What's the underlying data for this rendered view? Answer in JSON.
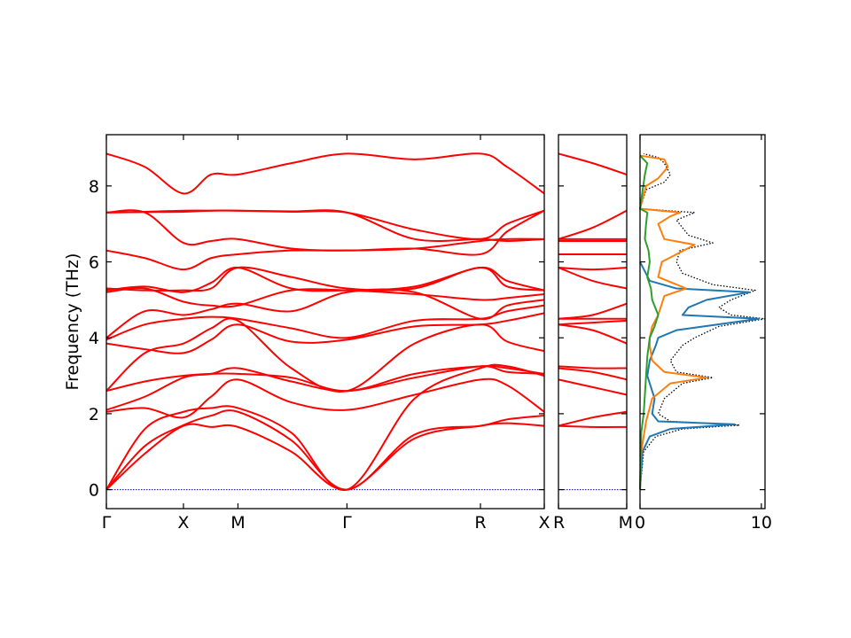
{
  "figure": {
    "ylabel": "Frequency (THz)"
  },
  "chart_data": [
    {
      "type": "line",
      "panel": "band-structure-main",
      "ylabel": "Frequency (THz)",
      "ylim": [
        -0.5,
        9.35
      ],
      "yticks": [
        0,
        2,
        4,
        6,
        8
      ],
      "path_labels": [
        "Γ",
        "X",
        "M",
        "Γ",
        "R",
        "X"
      ],
      "path_positions": [
        0,
        0.5,
        0.8536,
        1.5607,
        2.4267,
        2.8409
      ],
      "line_color": "#ff0000",
      "zero_line_color": "#0000aa",
      "series": [
        {
          "x": [
            0,
            0.25,
            0.5,
            0.68,
            0.8536,
            1.2,
            1.5607,
            2.0,
            2.4267,
            2.6,
            2.8409
          ],
          "values": [
            0,
            0.95,
            1.68,
            1.65,
            1.65,
            1.0,
            0,
            1.35,
            1.68,
            1.75,
            1.68
          ]
        },
        {
          "x": [
            0,
            0.25,
            0.5,
            0.68,
            0.8536,
            1.2,
            1.5607,
            2.0,
            2.4267,
            2.6,
            2.8409
          ],
          "values": [
            0,
            1.15,
            1.7,
            1.95,
            2.05,
            1.3,
            0,
            1.45,
            1.68,
            1.85,
            1.95
          ]
        },
        {
          "x": [
            0,
            0.25,
            0.5,
            0.68,
            0.8536,
            1.2,
            1.5607,
            2.0,
            2.4267,
            2.6,
            2.8409
          ],
          "values": [
            0,
            1.6,
            2.05,
            2.15,
            2.15,
            1.5,
            0,
            2.4,
            3.2,
            3.25,
            3.0
          ]
        },
        {
          "x": [
            0,
            0.25,
            0.5,
            0.68,
            0.8536,
            1.2,
            1.5607,
            2.0,
            2.4267,
            2.6,
            2.8409
          ],
          "values": [
            2.05,
            2.15,
            1.9,
            2.45,
            2.9,
            2.3,
            2.1,
            2.5,
            2.9,
            2.75,
            2.05
          ]
        },
        {
          "x": [
            0,
            0.25,
            0.5,
            0.68,
            0.8536,
            1.2,
            1.5607,
            2.0,
            2.4267,
            2.6,
            2.8409
          ],
          "values": [
            2.1,
            2.45,
            2.95,
            3.05,
            3.2,
            2.85,
            2.6,
            2.95,
            3.25,
            3.1,
            3.05
          ]
        },
        {
          "x": [
            0,
            0.25,
            0.5,
            0.68,
            0.8536,
            1.2,
            1.5607,
            2.0,
            2.4267,
            2.6,
            2.8409
          ],
          "values": [
            2.6,
            2.85,
            3.0,
            3.05,
            3.05,
            2.95,
            2.6,
            3.05,
            3.25,
            3.2,
            3.05
          ]
        },
        {
          "x": [
            0,
            0.25,
            0.5,
            0.68,
            0.8536,
            1.2,
            1.5607,
            2.0,
            2.4267,
            2.6,
            2.8409
          ],
          "values": [
            2.6,
            3.6,
            3.85,
            4.25,
            4.45,
            3.2,
            2.6,
            3.85,
            4.35,
            3.9,
            3.65
          ]
        },
        {
          "x": [
            0,
            0.25,
            0.5,
            0.68,
            0.8536,
            1.2,
            1.5607,
            2.0,
            2.4267,
            2.6,
            2.8409
          ],
          "values": [
            3.85,
            3.7,
            3.6,
            3.95,
            4.35,
            3.9,
            3.95,
            4.3,
            4.35,
            4.45,
            4.65
          ]
        },
        {
          "x": [
            0,
            0.25,
            0.5,
            0.68,
            0.8536,
            1.2,
            1.5607,
            2.0,
            2.4267,
            2.6,
            2.8409
          ],
          "values": [
            3.95,
            4.35,
            4.5,
            4.55,
            4.5,
            4.25,
            4.0,
            4.45,
            4.5,
            4.7,
            4.85
          ]
        },
        {
          "x": [
            0,
            0.25,
            0.5,
            0.68,
            0.8536,
            1.2,
            1.5607,
            2.0,
            2.4267,
            2.6,
            2.8409
          ],
          "values": [
            4.0,
            4.7,
            4.6,
            4.75,
            4.9,
            4.7,
            5.2,
            5.2,
            4.5,
            4.85,
            5.0
          ]
        },
        {
          "x": [
            0,
            0.25,
            0.5,
            0.68,
            0.8536,
            1.2,
            1.5607,
            2.0,
            2.4267,
            2.6,
            2.8409
          ],
          "values": [
            5.2,
            5.3,
            4.95,
            4.85,
            4.85,
            5.25,
            5.25,
            5.15,
            5.0,
            5.05,
            5.15
          ]
        },
        {
          "x": [
            0,
            0.25,
            0.5,
            0.68,
            0.8536,
            1.2,
            1.5607,
            2.0,
            2.4267,
            2.6,
            2.8409
          ],
          "values": [
            5.25,
            5.35,
            5.2,
            5.45,
            5.85,
            5.3,
            5.25,
            5.35,
            5.85,
            5.5,
            5.25
          ]
        },
        {
          "x": [
            0,
            0.25,
            0.5,
            0.68,
            0.8536,
            1.2,
            1.5607,
            2.0,
            2.4267,
            2.6,
            2.8409
          ],
          "values": [
            5.3,
            5.25,
            5.25,
            5.3,
            5.85,
            5.6,
            5.3,
            5.3,
            5.85,
            5.35,
            5.25
          ]
        },
        {
          "x": [
            0,
            0.25,
            0.5,
            0.68,
            0.8536,
            1.2,
            1.5607,
            2.0,
            2.4267,
            2.6,
            2.8409
          ],
          "values": [
            6.3,
            6.1,
            5.8,
            6.1,
            6.2,
            6.3,
            6.3,
            6.35,
            6.55,
            6.6,
            6.6
          ]
        },
        {
          "x": [
            0,
            0.25,
            0.5,
            0.68,
            0.8536,
            1.2,
            1.5607,
            2.0,
            2.4267,
            2.6,
            2.8409
          ],
          "values": [
            7.3,
            7.3,
            6.5,
            6.55,
            6.6,
            6.35,
            6.3,
            6.35,
            6.2,
            6.8,
            7.35
          ]
        },
        {
          "x": [
            0,
            0.25,
            0.5,
            0.68,
            0.8536,
            1.2,
            1.5607,
            2.0,
            2.4267,
            2.6,
            2.8409
          ],
          "values": [
            7.3,
            7.32,
            7.35,
            7.35,
            7.35,
            7.33,
            7.3,
            6.6,
            6.6,
            6.55,
            6.6
          ]
        },
        {
          "x": [
            0,
            0.25,
            0.5,
            0.68,
            0.8536,
            1.2,
            1.5607,
            2.0,
            2.4267,
            2.6,
            2.8409
          ],
          "values": [
            7.3,
            7.31,
            7.32,
            7.35,
            7.35,
            7.32,
            7.3,
            6.85,
            6.6,
            7.0,
            7.35
          ]
        },
        {
          "x": [
            0,
            0.25,
            0.5,
            0.68,
            0.8536,
            1.2,
            1.5607,
            2.0,
            2.4267,
            2.6,
            2.8409
          ],
          "values": [
            8.85,
            8.5,
            7.8,
            8.3,
            8.3,
            8.6,
            8.85,
            8.7,
            8.85,
            8.5,
            7.8
          ]
        }
      ]
    },
    {
      "type": "line",
      "panel": "band-structure-side",
      "ylim": [
        -0.5,
        9.35
      ],
      "path_labels": [
        "R",
        "M"
      ],
      "path_positions": [
        0,
        0.5
      ],
      "line_color": "#ff0000",
      "series": [
        {
          "x": [
            0,
            0.25,
            0.5
          ],
          "values": [
            1.68,
            1.65,
            1.65
          ]
        },
        {
          "x": [
            0,
            0.25,
            0.5
          ],
          "values": [
            1.68,
            1.9,
            2.05
          ]
        },
        {
          "x": [
            0,
            0.25,
            0.5
          ],
          "values": [
            2.9,
            2.7,
            2.5
          ]
        },
        {
          "x": [
            0,
            0.25,
            0.5
          ],
          "values": [
            3.2,
            3.1,
            2.9
          ]
        },
        {
          "x": [
            0,
            0.25,
            0.5
          ],
          "values": [
            3.25,
            3.2,
            3.2
          ]
        },
        {
          "x": [
            0,
            0.25,
            0.5
          ],
          "values": [
            4.35,
            4.2,
            3.85
          ]
        },
        {
          "x": [
            0,
            0.25,
            0.5
          ],
          "values": [
            4.35,
            4.4,
            4.45
          ]
        },
        {
          "x": [
            0,
            0.25,
            0.5
          ],
          "values": [
            4.5,
            4.5,
            4.5
          ]
        },
        {
          "x": [
            0,
            0.25,
            0.5
          ],
          "values": [
            4.5,
            4.6,
            4.9
          ]
        },
        {
          "x": [
            0,
            0.25,
            0.5
          ],
          "values": [
            5.85,
            5.5,
            5.3
          ]
        },
        {
          "x": [
            0,
            0.25,
            0.5
          ],
          "values": [
            5.85,
            5.8,
            5.85
          ]
        },
        {
          "x": [
            0,
            0.25,
            0.5
          ],
          "values": [
            6.2,
            6.2,
            6.2
          ]
        },
        {
          "x": [
            0,
            0.25,
            0.5
          ],
          "values": [
            6.55,
            6.55,
            6.55
          ]
        },
        {
          "x": [
            0,
            0.25,
            0.5
          ],
          "values": [
            6.6,
            6.6,
            6.6
          ]
        },
        {
          "x": [
            0,
            0.25,
            0.5
          ],
          "values": [
            6.6,
            6.9,
            7.35
          ]
        },
        {
          "x": [
            0,
            0.25,
            0.5
          ],
          "values": [
            8.85,
            8.6,
            8.3
          ]
        }
      ]
    },
    {
      "type": "line",
      "panel": "projected-dos",
      "xlim": [
        0,
        10.3
      ],
      "ylim": [
        -0.5,
        9.35
      ],
      "xticks": [
        0,
        10
      ],
      "series": [
        {
          "name": "",
          "style": "dotted",
          "color": "#000000",
          "y": [
            0,
            1.0,
            1.4,
            1.6,
            1.7,
            1.8,
            2.0,
            2.4,
            2.8,
            2.95,
            3.1,
            3.4,
            3.8,
            4.0,
            4.3,
            4.5,
            4.6,
            4.8,
            5.0,
            5.25,
            5.4,
            5.7,
            6.0,
            6.3,
            6.5,
            6.7,
            6.9,
            7.1,
            7.3,
            7.4,
            7.9,
            8.1,
            8.3,
            8.6,
            8.75,
            8.85
          ],
          "values": [
            0,
            0.3,
            1.3,
            3.5,
            8.2,
            2.5,
            1.5,
            2.0,
            3.5,
            6.0,
            3.0,
            2.5,
            3.5,
            4.5,
            6.5,
            10.3,
            7.5,
            6.5,
            7.5,
            9.5,
            6.0,
            3.5,
            3.0,
            3.3,
            6.0,
            4.0,
            3.5,
            3.0,
            4.5,
            0,
            0.5,
            2.0,
            2.5,
            2.0,
            1.5,
            0.3
          ]
        },
        {
          "name": "",
          "style": "solid",
          "color": "#1f77b4",
          "y": [
            0,
            1.0,
            1.4,
            1.6,
            1.72,
            1.8,
            2.0,
            2.4,
            2.8,
            3.0,
            3.4,
            3.8,
            4.0,
            4.2,
            4.5,
            4.6,
            4.8,
            5.0,
            5.2,
            5.3,
            5.5,
            6.0
          ],
          "values": [
            0,
            0.2,
            0.8,
            2.5,
            7.8,
            1.5,
            1.0,
            1.2,
            0.8,
            0.6,
            0.8,
            1.3,
            1.5,
            3.0,
            9.8,
            3.5,
            4.0,
            5.5,
            9.0,
            3.0,
            0.8,
            0
          ]
        },
        {
          "name": "",
          "style": "solid",
          "color": "#ff7f0e",
          "y": [
            0,
            1.0,
            1.8,
            2.4,
            2.8,
            2.95,
            3.1,
            3.4,
            3.8,
            4.0,
            4.3,
            4.6,
            4.9,
            5.1,
            5.3,
            5.6,
            6.0,
            6.45,
            6.6,
            7.0,
            7.2,
            7.3,
            7.4,
            8.0,
            8.2,
            8.5,
            8.7,
            8.8
          ],
          "values": [
            0,
            0.1,
            0.5,
            1.0,
            2.5,
            5.5,
            2.0,
            1.0,
            0.8,
            0.8,
            1.0,
            1.5,
            1.8,
            2.0,
            3.8,
            1.5,
            1.8,
            4.5,
            2.0,
            1.5,
            2.5,
            3.3,
            0,
            0.5,
            1.5,
            2.3,
            2.0,
            0
          ]
        },
        {
          "name": "",
          "style": "solid",
          "color": "#2ca02c",
          "y": [
            0,
            1.5,
            2.0,
            2.5,
            3.0,
            3.5,
            4.0,
            4.3,
            4.6,
            5.0,
            5.3,
            5.6,
            6.0,
            6.3,
            6.6,
            7.0,
            7.3,
            7.4,
            8.3,
            8.6,
            8.8
          ],
          "values": [
            0,
            0.1,
            0.3,
            0.4,
            0.5,
            0.6,
            0.8,
            1.2,
            1.5,
            1.0,
            0.9,
            0.6,
            0.8,
            0.7,
            0.4,
            0.5,
            0.6,
            0,
            0.4,
            0.6,
            0
          ]
        }
      ]
    }
  ]
}
